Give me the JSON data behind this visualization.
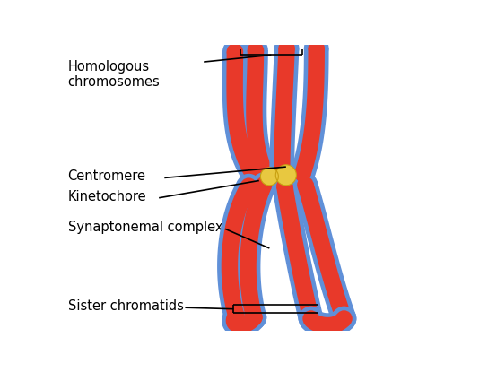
{
  "background_color": "#ffffff",
  "red_color": "#e8392a",
  "blue_color": "#6090d8",
  "gold_color": "#e8c840",
  "gold_dark": "#c8a010",
  "text_color": "#000000",
  "labels": {
    "homologous": "Homologous\nchromosomes",
    "centromere": "Centromere",
    "kinetochore": "Kinetochore",
    "synaptonemal": "Synaptonemal complex",
    "sister": "Sister chromatids"
  },
  "figsize": [
    5.44,
    4.15
  ],
  "dpi": 100
}
